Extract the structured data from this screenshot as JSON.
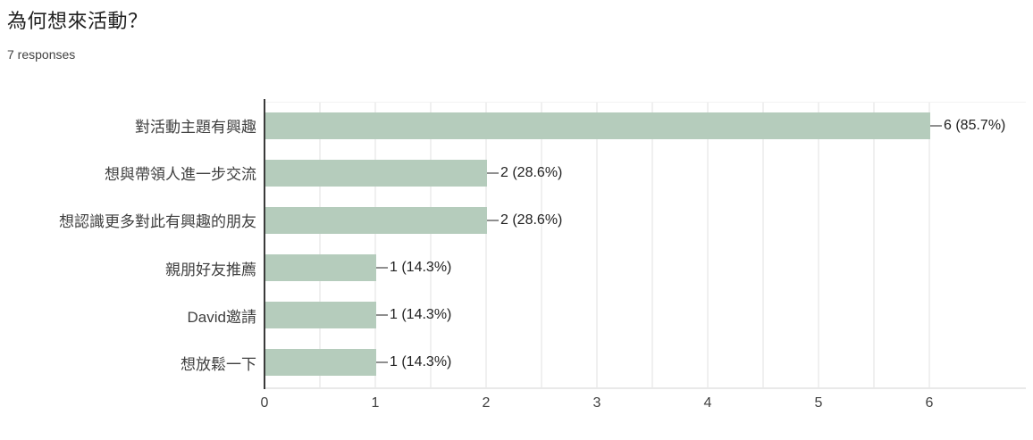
{
  "header": {
    "title": "為何想來活動？",
    "subtitle": "7 responses"
  },
  "chart_data": {
    "type": "bar",
    "orientation": "horizontal",
    "title": "為何想來活動？",
    "subtitle": "7 responses",
    "total_responses": 7,
    "categories": [
      "對活動主題有興趣",
      "想與帶領人進一步交流",
      "想認識更多對此有興趣的朋友",
      "親朋好友推薦",
      "David邀請",
      "想放鬆一下"
    ],
    "values": [
      6,
      2,
      2,
      1,
      1,
      1
    ],
    "percentages": [
      85.7,
      28.6,
      28.6,
      14.3,
      14.3,
      14.3
    ],
    "value_labels": [
      "6 (85.7%)",
      "2 (28.6%)",
      "2 (28.6%)",
      "1 (14.3%)",
      "1 (14.3%)",
      "1 (14.3%)"
    ],
    "xlim": [
      0,
      6
    ],
    "x_ticks": [
      "0",
      "1",
      "2",
      "3",
      "4",
      "5",
      "6"
    ],
    "gridline_step": 0.5,
    "grid": true,
    "legend": "none",
    "colors": {
      "bar": "#b5ccbc",
      "axis": "#3a3a3a",
      "gridline": "#f0f0f0",
      "leader": "#8f8f8f",
      "title_text": "#212121",
      "label_text": "#404040",
      "tick_text": "#424242"
    }
  }
}
